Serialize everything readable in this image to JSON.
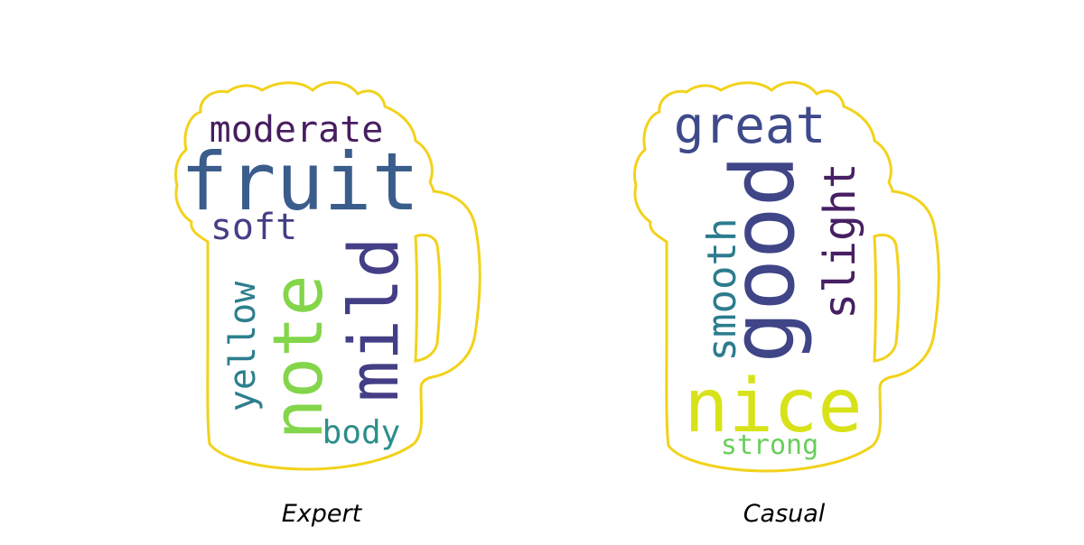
{
  "outline_color": "#f2d21b",
  "panels": [
    {
      "id": "expert",
      "caption": "Expert",
      "words": [
        {
          "text": "moderate",
          "color": "#471d5f"
        },
        {
          "text": "fruit",
          "color": "#3b5d8c"
        },
        {
          "text": "soft",
          "color": "#443f86"
        },
        {
          "text": "note",
          "color": "#83d54a"
        },
        {
          "text": "mild",
          "color": "#433e85"
        },
        {
          "text": "yellow",
          "color": "#2d7f8e"
        },
        {
          "text": "body",
          "color": "#2b8f8b"
        }
      ]
    },
    {
      "id": "casual",
      "caption": "Casual",
      "words": [
        {
          "text": "great",
          "color": "#3f4a8a"
        },
        {
          "text": "good",
          "color": "#3f4586"
        },
        {
          "text": "slight",
          "color": "#471f63"
        },
        {
          "text": "smooth",
          "color": "#2c7c8e"
        },
        {
          "text": "nice",
          "color": "#d8e219"
        },
        {
          "text": "strong",
          "color": "#69cd5b"
        }
      ]
    }
  ]
}
